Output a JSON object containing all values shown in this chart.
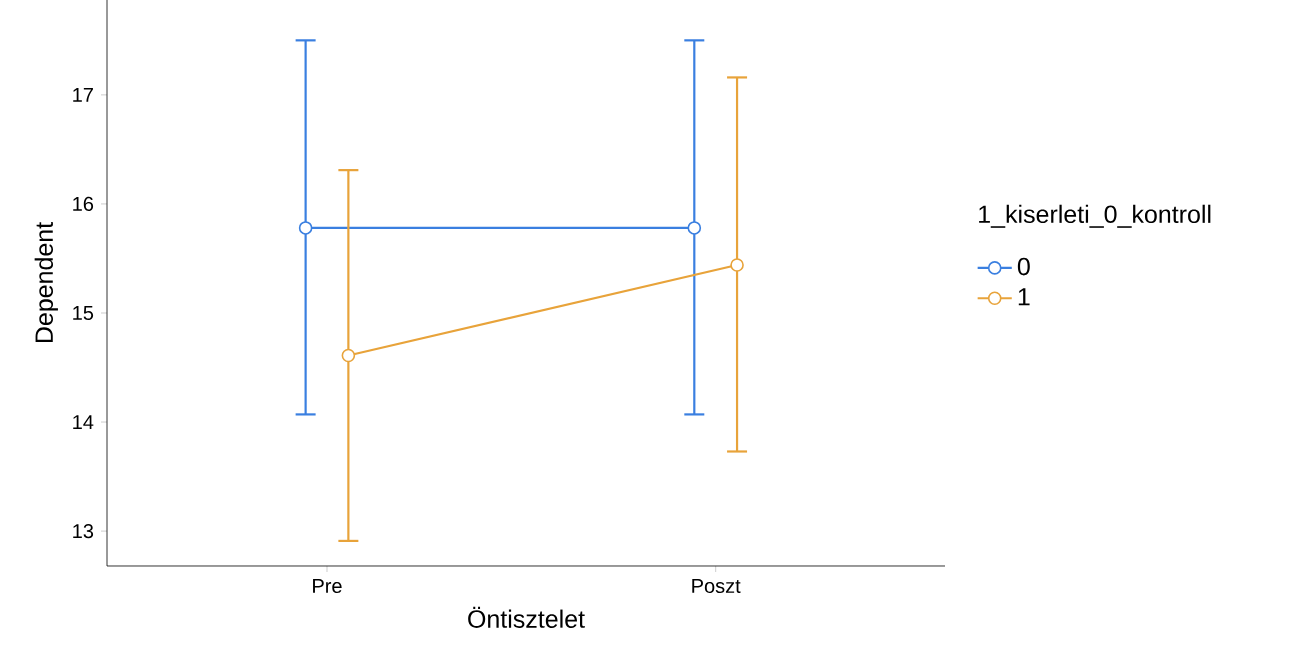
{
  "chart_data": {
    "type": "line",
    "xlabel": "Öntisztelet",
    "ylabel": "Dependent",
    "legend_title": "1_kiserleti_0_kontroll",
    "categories": [
      "Pre",
      "Poszt"
    ],
    "series": [
      {
        "name": "0",
        "color": "#3a7fe0",
        "values": [
          15.78,
          15.78
        ],
        "errors": [
          [
            14.07,
            17.5
          ],
          [
            14.07,
            17.5
          ]
        ]
      },
      {
        "name": "1",
        "color": "#e8a33a",
        "values": [
          14.61,
          15.44
        ],
        "errors": [
          [
            12.91,
            16.31
          ],
          [
            13.73,
            17.16
          ]
        ]
      }
    ],
    "ylim": [
      12.68,
      17.87
    ],
    "yticks": [
      13,
      14,
      15,
      16,
      17
    ],
    "grid": false,
    "legend": "right",
    "marker": "circle",
    "line_style": "solid"
  }
}
